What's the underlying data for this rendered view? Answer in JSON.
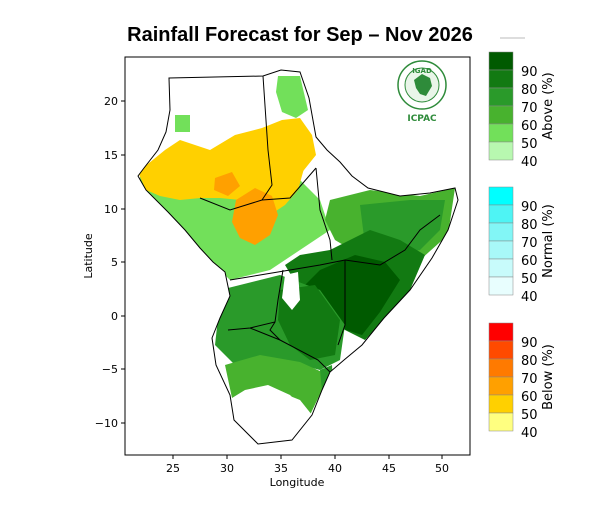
{
  "title": "Rainfall Forecast for Sep – Nov 2026",
  "axes": {
    "xlabel": "Longitude",
    "ylabel": "Latitude",
    "xlim": [
      21,
      52
    ],
    "ylim": [
      -13,
      24
    ],
    "xticks": [
      "25",
      "30",
      "35",
      "40",
      "45",
      "50"
    ],
    "yticks": [
      "20",
      "15",
      "10",
      "5",
      "0",
      "−5",
      "−10"
    ]
  },
  "logo": {
    "top_text": "IGAD",
    "bottom_text": "ICPAC",
    "color": "#2e8b3a"
  },
  "legend": {
    "above": {
      "title": "Above (%)",
      "labels": [
        "90",
        "80",
        "70",
        "60",
        "50",
        "40"
      ],
      "colors": [
        "#005a00",
        "#127a12",
        "#2a9a2a",
        "#48b22e",
        "#72e05a",
        "#b8f8b0"
      ]
    },
    "normal": {
      "title": "Normal (%)",
      "labels": [
        "90",
        "80",
        "70",
        "60",
        "50",
        "40"
      ],
      "colors": [
        "#00ffff",
        "#4ef4f4",
        "#82f6f6",
        "#a8f8f8",
        "#c8fbfb",
        "#e8fefe"
      ]
    },
    "below": {
      "title": "Below (%)",
      "labels": [
        "90",
        "80",
        "70",
        "60",
        "50",
        "40"
      ],
      "colors": [
        "#ff0000",
        "#ff4a00",
        "#ff7a00",
        "#ffa000",
        "#ffd000",
        "#ffff80"
      ]
    }
  },
  "palette": {
    "above_light": "#a8f0a0",
    "above_50": "#72e05a",
    "above_60": "#48b22e",
    "above_70": "#2a9a2a",
    "above_80": "#127a12",
    "above_90": "#005a00",
    "below_50": "#ffd000",
    "below_60": "#ffa000",
    "white": "#ffffff"
  }
}
